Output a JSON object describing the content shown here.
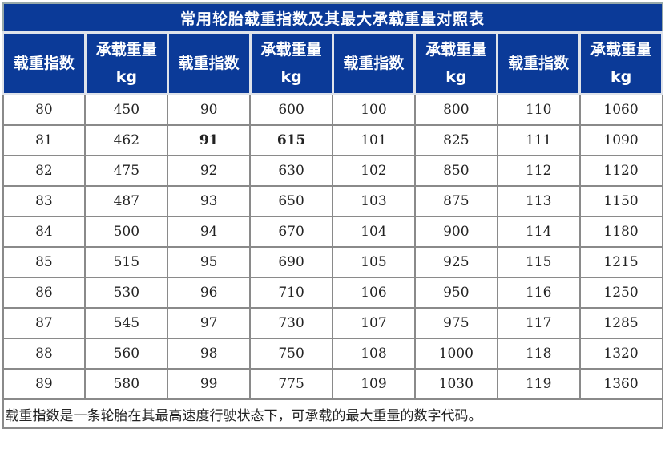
{
  "title": "常用轮胎载重指数及其最大承载重量对照表",
  "headers": {
    "index": "载重指数",
    "load": "承载重量",
    "unit": "kg"
  },
  "colors": {
    "header_bg": "#0b3a98",
    "header_text": "#ffffff"
  },
  "rows": [
    [
      "80",
      "450",
      "90",
      "600",
      "100",
      "800",
      "110",
      "1060"
    ],
    [
      "81",
      "462",
      "91",
      "615",
      "101",
      "825",
      "111",
      "1090"
    ],
    [
      "82",
      "475",
      "92",
      "630",
      "102",
      "850",
      "112",
      "1120"
    ],
    [
      "83",
      "487",
      "93",
      "650",
      "103",
      "875",
      "113",
      "1150"
    ],
    [
      "84",
      "500",
      "94",
      "670",
      "104",
      "900",
      "114",
      "1180"
    ],
    [
      "85",
      "515",
      "95",
      "690",
      "105",
      "925",
      "115",
      "1215"
    ],
    [
      "86",
      "530",
      "96",
      "710",
      "106",
      "950",
      "116",
      "1250"
    ],
    [
      "87",
      "545",
      "97",
      "730",
      "107",
      "975",
      "117",
      "1285"
    ],
    [
      "88",
      "560",
      "98",
      "750",
      "108",
      "1000",
      "118",
      "1320"
    ],
    [
      "89",
      "580",
      "99",
      "775",
      "109",
      "1030",
      "119",
      "1360"
    ]
  ],
  "footnote": "载重指数是一条轮胎在其最高速度行驶状态下，可承载的最大重量的数字代码。"
}
